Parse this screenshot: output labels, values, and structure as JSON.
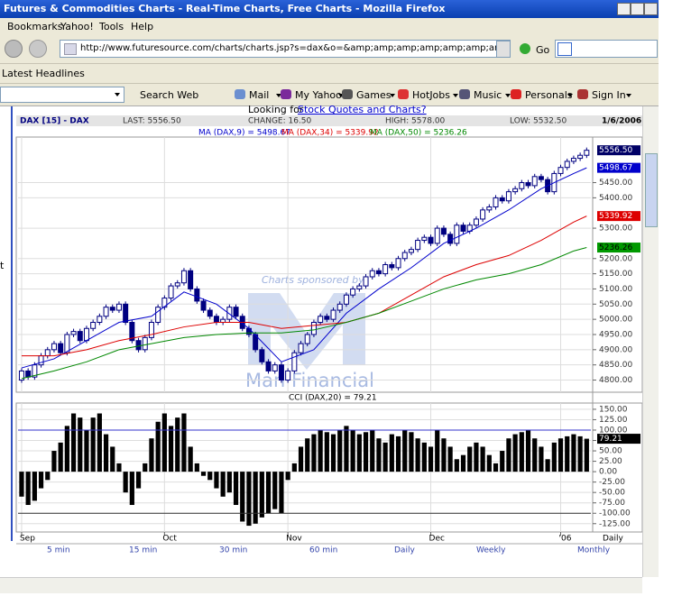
{
  "window": {
    "title": "Futures & Commodities Charts - Real-Time Charts, Free Charts - Mozilla Firefox",
    "menu": [
      "Bookmarks",
      "Yahoo!",
      "Tools",
      "Help"
    ],
    "url": "http://www.futuresource.com/charts/charts.jsp?s=dax&o=&amp;amp;amp;amp;amp;amp;amp;amp;amp;a=D[",
    "go": "Go",
    "bookmark_bar": [
      "Latest Headlines"
    ],
    "toolbar": [
      "Search Web",
      "Mail",
      "My Yahoo!",
      "Games",
      "HotJobs",
      "Music",
      "Personals",
      "Sign In"
    ]
  },
  "page": {
    "banner": "Looking for ",
    "banner_link": "Stock Quotes and Charts?",
    "side_text": "t",
    "sponsor": "Charts sponsored by",
    "sponsor_name": "Man Financial",
    "timeframes": [
      "5 min",
      "15 min",
      "30 min",
      "60 min",
      "Daily",
      "Weekly",
      "Monthly"
    ],
    "x_end_label": "Daily"
  },
  "chart_data": [
    {
      "type": "candlestick",
      "title": "DAX [15] - DAX",
      "header": [
        "LAST: 5556.50",
        "CHANGE: 16.50",
        "HIGH: 5578.00",
        "LOW: 5532.50"
      ],
      "date": "1/6/2006",
      "color": "#000080",
      "open": [
        4800,
        4830,
        4810,
        4850,
        4880,
        4900,
        4920,
        4890,
        4950,
        4960,
        4930,
        4970,
        4990,
        5010,
        5040,
        5030,
        5050,
        4990,
        4930,
        4900,
        4940,
        4990,
        5040,
        5070,
        5110,
        5120,
        5160,
        5100,
        5060,
        5030,
        5010,
        4990,
        5000,
        5040,
        5010,
        4970,
        4950,
        4900,
        4860,
        4830,
        4850,
        4800,
        4830,
        4890,
        4920,
        4950,
        4990,
        5010,
        5000,
        5030,
        5050,
        5080,
        5100,
        5110,
        5140,
        5160,
        5150,
        5180,
        5170,
        5200,
        5220,
        5230,
        5260,
        5270,
        5250,
        5300,
        5280,
        5250,
        5310,
        5290,
        5310,
        5330,
        5360,
        5370,
        5400,
        5390,
        5420,
        5430,
        5450,
        5440,
        5470,
        5460,
        5420,
        5480,
        5500,
        5520,
        5530,
        5540
      ],
      "close": [
        4830,
        4810,
        4850,
        4880,
        4900,
        4920,
        4890,
        4950,
        4960,
        4930,
        4970,
        4990,
        5010,
        5040,
        5030,
        5050,
        4990,
        4930,
        4900,
        4940,
        4990,
        5040,
        5070,
        5110,
        5120,
        5160,
        5100,
        5060,
        5030,
        5010,
        4990,
        5000,
        5040,
        5010,
        4970,
        4950,
        4900,
        4860,
        4830,
        4850,
        4800,
        4830,
        4890,
        4920,
        4950,
        4990,
        5010,
        5000,
        5030,
        5050,
        5080,
        5100,
        5110,
        5140,
        5160,
        5150,
        5180,
        5170,
        5200,
        5220,
        5230,
        5260,
        5270,
        5250,
        5300,
        5280,
        5250,
        5310,
        5290,
        5310,
        5330,
        5360,
        5370,
        5400,
        5390,
        5420,
        5430,
        5450,
        5440,
        5470,
        5460,
        5420,
        5480,
        5500,
        5520,
        5530,
        5540,
        5556.5
      ],
      "series": [
        {
          "name": "MA (DAX,9) = 5498.67",
          "color": "#0000cc",
          "x": [
            0,
            5,
            10,
            15,
            20,
            25,
            30,
            35,
            40,
            45,
            50,
            55,
            60,
            65,
            70,
            75,
            80,
            85,
            87
          ],
          "values": [
            4840,
            4870,
            4930,
            4990,
            5010,
            5090,
            5050,
            4970,
            4860,
            4900,
            5020,
            5100,
            5170,
            5250,
            5300,
            5360,
            5430,
            5480,
            5498.67
          ]
        },
        {
          "name": "MA (DAX,34) = 5339.92",
          "color": "#dd0000",
          "x": [
            0,
            5,
            10,
            15,
            20,
            25,
            30,
            35,
            40,
            45,
            50,
            55,
            60,
            65,
            70,
            75,
            80,
            85,
            87
          ],
          "values": [
            4880,
            4880,
            4900,
            4930,
            4950,
            4975,
            4990,
            4990,
            4970,
            4980,
            4990,
            5020,
            5080,
            5140,
            5180,
            5210,
            5260,
            5320,
            5339.92
          ]
        },
        {
          "name": "MA (DAX,50) = 5236.26",
          "color": "#008800",
          "x": [
            0,
            5,
            10,
            15,
            20,
            25,
            30,
            35,
            40,
            45,
            50,
            55,
            60,
            65,
            70,
            75,
            80,
            85,
            87
          ],
          "values": [
            4805,
            4830,
            4860,
            4900,
            4920,
            4940,
            4950,
            4955,
            4955,
            4965,
            4990,
            5020,
            5060,
            5100,
            5130,
            5150,
            5180,
            5225,
            5236.26
          ]
        }
      ],
      "price_labels": [
        {
          "value": 5556.5,
          "label": "5556.50",
          "color": "#000066",
          "text_color": "#ffffff"
        },
        {
          "value": 5498.67,
          "label": "5498.67",
          "color": "#0000cc",
          "text_color": "#ffffff"
        },
        {
          "value": 5339.92,
          "label": "5339.92",
          "color": "#dd0000",
          "text_color": "#ffffff"
        },
        {
          "value": 5236.26,
          "label": "5236.26",
          "color": "#009900",
          "text_color": "#000000"
        }
      ],
      "xlim": [
        -0.55,
        87.65
      ],
      "xticks": [
        {
          "value": 0,
          "label": "Sep"
        },
        {
          "value": 22,
          "label": "Oct"
        },
        {
          "value": 41,
          "label": "Nov"
        },
        {
          "value": 63,
          "label": "Dec"
        },
        {
          "value": 83,
          "label": "'06"
        }
      ],
      "ylim": [
        4760,
        5600
      ],
      "yticks": [
        {
          "value": 4800,
          "label": "4800.00"
        },
        {
          "value": 4850,
          "label": "4850.00"
        },
        {
          "value": 4900,
          "label": "4900.00"
        },
        {
          "value": 4950,
          "label": "4950.00"
        },
        {
          "value": 5000,
          "label": "5000.00"
        },
        {
          "value": 5050,
          "label": "5050.00"
        },
        {
          "value": 5100,
          "label": "5100.00"
        },
        {
          "value": 5150,
          "label": "5150.00"
        },
        {
          "value": 5200,
          "label": "5200.00"
        },
        {
          "value": 5300,
          "label": "5300.00"
        },
        {
          "value": 5400,
          "label": "5400.00"
        },
        {
          "value": 5450,
          "label": "5450.00"
        }
      ],
      "grid": true
    },
    {
      "type": "bar",
      "title": "CCI (DAX,20) = 79.21",
      "color": "#000000",
      "values": [
        -60,
        -80,
        -70,
        -40,
        -20,
        50,
        70,
        110,
        140,
        130,
        100,
        130,
        140,
        90,
        60,
        20,
        -50,
        -80,
        -40,
        20,
        80,
        120,
        140,
        110,
        130,
        140,
        60,
        20,
        -10,
        -20,
        -40,
        -60,
        -50,
        -80,
        -120,
        -130,
        -125,
        -110,
        -100,
        -90,
        -100,
        -20,
        20,
        60,
        80,
        90,
        100,
        95,
        90,
        100,
        110,
        100,
        90,
        95,
        100,
        80,
        70,
        90,
        85,
        100,
        95,
        80,
        70,
        60,
        100,
        80,
        60,
        30,
        40,
        60,
        70,
        60,
        40,
        20,
        50,
        80,
        90,
        95,
        100,
        80,
        60,
        30,
        70,
        80,
        85,
        90,
        85,
        79.21
      ],
      "hlines": [
        {
          "value": 100,
          "color": "#3333cc"
        },
        {
          "value": -100,
          "color": "#333333"
        }
      ],
      "last_label": {
        "value": 79.21,
        "label": "79.21"
      },
      "ylim": [
        -145,
        165
      ],
      "yticks": [
        {
          "value": 150,
          "label": "150.00"
        },
        {
          "value": 125,
          "label": "125.00"
        },
        {
          "value": 100,
          "label": "100.00"
        },
        {
          "value": 75,
          "label": "75.00"
        },
        {
          "value": 50,
          "label": "50.00"
        },
        {
          "value": 25,
          "label": "25.00"
        },
        {
          "value": 0,
          "label": "0.00"
        },
        {
          "value": -25,
          "label": "-25.00"
        },
        {
          "value": -50,
          "label": "-50.00"
        },
        {
          "value": -75,
          "label": "-75.00"
        },
        {
          "value": -100,
          "label": "-100.00"
        },
        {
          "value": -125,
          "label": "-125.00"
        }
      ],
      "grid": true
    }
  ]
}
